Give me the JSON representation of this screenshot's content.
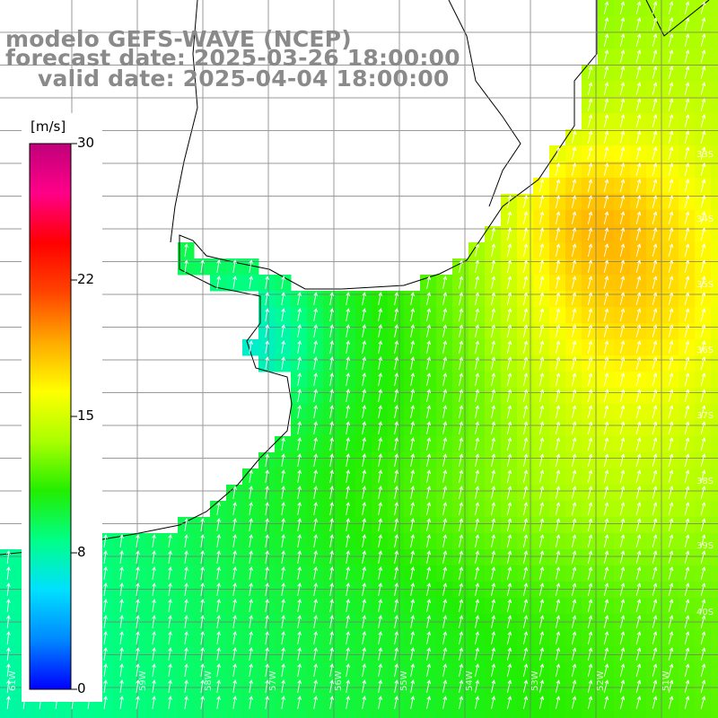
{
  "title": {
    "model": "modelo GEFS-WAVE (NCEP)",
    "forecast": "forecast date: 2025-03-26 18:00:00",
    "valid": "valid date: 2025-04-04 18:00:00"
  },
  "colorbar": {
    "unit": "[m/s]",
    "ticks": [
      {
        "value": 30,
        "label": "30"
      },
      {
        "value": 22,
        "label": "22"
      },
      {
        "value": 15,
        "label": "15"
      },
      {
        "value": 8,
        "label": "8"
      },
      {
        "value": 0,
        "label": "0"
      }
    ],
    "range": [
      0,
      30
    ],
    "stops": [
      "#0000ff",
      "#0088ff",
      "#00e0ff",
      "#00ff88",
      "#22ee00",
      "#aaff00",
      "#ffff00",
      "#ffaa00",
      "#ff4400",
      "#ff0000",
      "#ff0088",
      "#c0007a"
    ]
  },
  "lat_labels": [
    "33S",
    "34S",
    "35S",
    "36S",
    "37S",
    "38S",
    "39S",
    "40S"
  ],
  "lon_labels": [
    "61W",
    "59W",
    "58W",
    "57W",
    "56W",
    "55W",
    "54W",
    "53W",
    "52W",
    "51W",
    "50W"
  ],
  "colors": {
    "coast": "#000000",
    "grid": "#777777",
    "arrow": "#ffffff",
    "land": "#ffffff",
    "title": "#8a8a8a"
  }
}
